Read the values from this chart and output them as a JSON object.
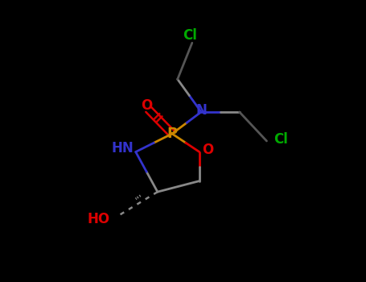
{
  "bg_color": "#000000",
  "bond_color": "#333333",
  "N_color": "#3333cc",
  "O_color": "#dd0000",
  "P_color": "#cc8800",
  "Cl_color": "#00aa00",
  "HO_color": "#dd0000",
  "NH_color": "#3333cc",
  "figsize": [
    4.55,
    3.5
  ],
  "dpi": 100,
  "xlim": [
    0,
    10
  ],
  "ylim": [
    0,
    7.7
  ]
}
